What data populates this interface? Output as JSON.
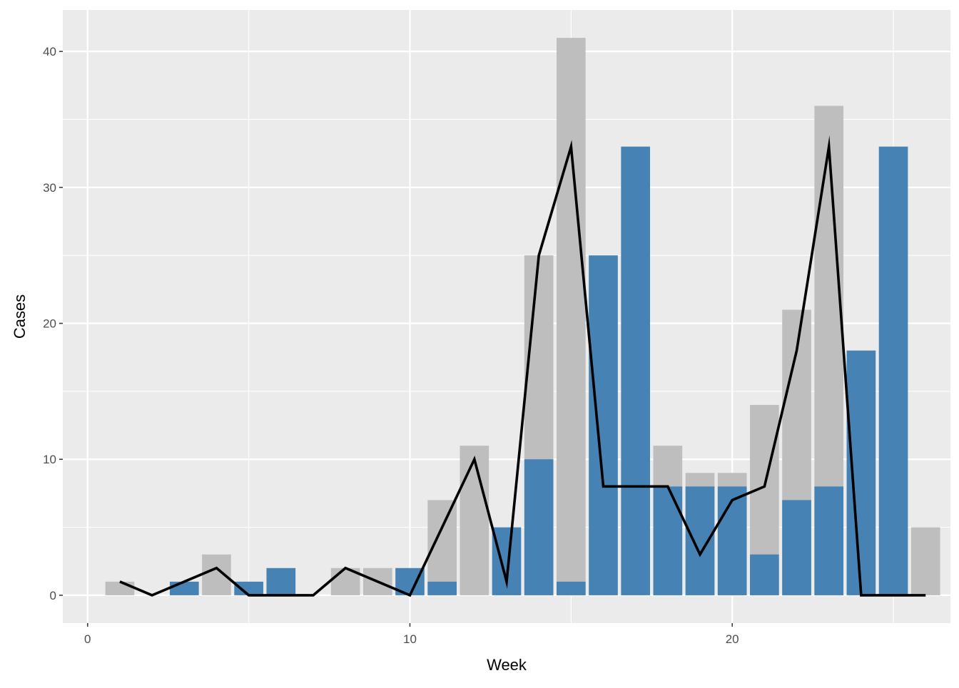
{
  "chart_data": {
    "type": "bar",
    "xlabel": "Week",
    "ylabel": "Cases",
    "xlim": [
      -0.77,
      26.77
    ],
    "ylim": [
      -2.05,
      43.05
    ],
    "x_ticks": [
      0,
      10,
      20
    ],
    "y_ticks": [
      0,
      10,
      20,
      30,
      40
    ],
    "grid": true,
    "background": "#EBEBEB",
    "grid_color": "#FFFFFF",
    "series": [
      {
        "type": "bar",
        "color": "#BEBEBE",
        "x": [
          1,
          4,
          8,
          9,
          11,
          12,
          14,
          15,
          18,
          19,
          20,
          21,
          22,
          23,
          26
        ],
        "values": [
          1,
          3,
          2,
          2,
          7,
          11,
          25,
          41,
          11,
          9,
          9,
          14,
          21,
          36,
          5
        ]
      },
      {
        "type": "bar",
        "color": "#4682B4",
        "x": [
          3,
          5,
          6,
          10,
          11,
          13,
          14,
          15,
          16,
          17,
          18,
          19,
          20,
          21,
          22,
          23,
          24,
          25
        ],
        "values": [
          1,
          1,
          2,
          2,
          1,
          5,
          10,
          1,
          25,
          33,
          8,
          8,
          8,
          3,
          7,
          8,
          18,
          33
        ]
      },
      {
        "type": "line",
        "color": "#000000",
        "x": [
          1,
          2,
          3,
          4,
          5,
          6,
          7,
          8,
          9,
          10,
          11,
          12,
          13,
          14,
          15,
          16,
          17,
          18,
          19,
          20,
          21,
          22,
          23,
          24,
          25,
          26
        ],
        "values": [
          1,
          0,
          1,
          2,
          0,
          0,
          0,
          2,
          1,
          0,
          5,
          10,
          1,
          25,
          33,
          8,
          8,
          8,
          3,
          7,
          8,
          18,
          33,
          0,
          0,
          0
        ]
      }
    ]
  }
}
